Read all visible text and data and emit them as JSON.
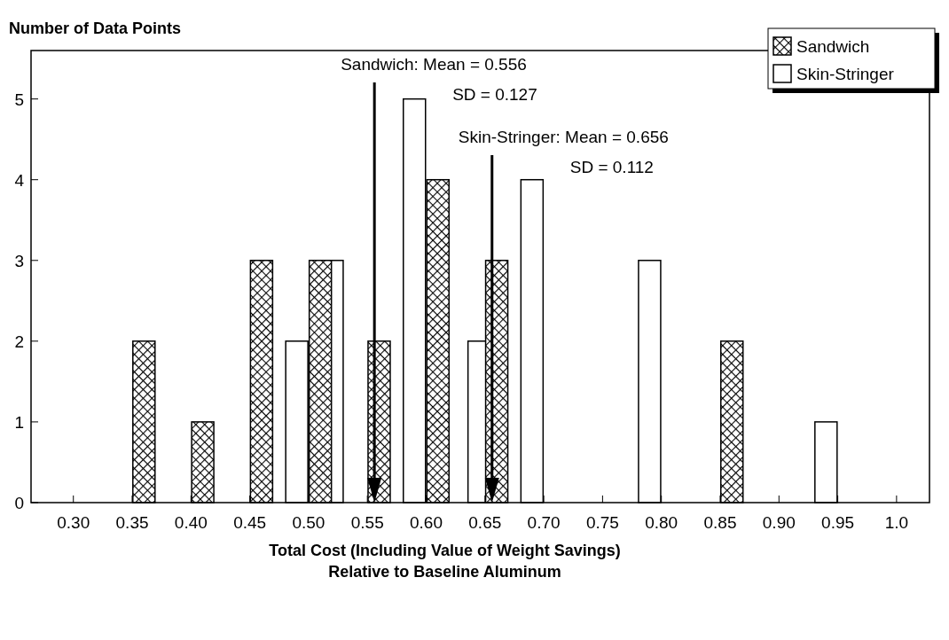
{
  "chart_data": {
    "type": "bar",
    "ylabel": "Number of Data Points",
    "xlabel": "Total Cost (Including Value of Weight Savings)\nRelative to Baseline Aluminum",
    "series": [
      {
        "name": "Sandwich",
        "color": "#000000",
        "x": [
          0.36,
          0.41,
          0.46,
          0.51,
          0.56,
          0.61,
          0.66,
          0.86
        ],
        "values": [
          2,
          1,
          3,
          3,
          2,
          4,
          3,
          2
        ]
      },
      {
        "name": "Skin-Stringer",
        "color": "#ffffff",
        "x": [
          0.49,
          0.52,
          0.59,
          0.645,
          0.69,
          0.79,
          0.94
        ],
        "values": [
          2,
          3,
          5,
          2,
          4,
          3,
          1
        ]
      }
    ],
    "xlim": [
      0.264,
      1.028
    ],
    "xticks": [
      {
        "value": 0.3,
        "label": "0.30"
      },
      0.35,
      {
        "value": 0.4,
        "label": "0.40"
      },
      0.45,
      {
        "value": 0.5,
        "label": "0.50"
      },
      0.55,
      {
        "value": 0.6,
        "label": "0.60"
      },
      0.65,
      {
        "value": 0.7,
        "label": "0.70"
      },
      0.75,
      {
        "value": 0.8,
        "label": "0.80"
      },
      0.85,
      {
        "value": 0.9,
        "label": "0.90"
      },
      0.95,
      {
        "value": 1.0,
        "label": "1.0"
      }
    ],
    "ylim": [
      0,
      5.6
    ],
    "yticks": [
      0,
      1,
      2,
      3,
      4,
      5
    ],
    "ref_lines": [
      {
        "axis": "x",
        "value": 0.556,
        "label": "Sandwich: Mean = 0.556\nSD = 0.127",
        "color": "#000000"
      },
      {
        "axis": "x",
        "value": 0.656,
        "label": "Skin-Stringer: Mean = 0.656\nSD = 0.112",
        "color": "#000000"
      }
    ],
    "legend": "top right",
    "grid": false
  }
}
